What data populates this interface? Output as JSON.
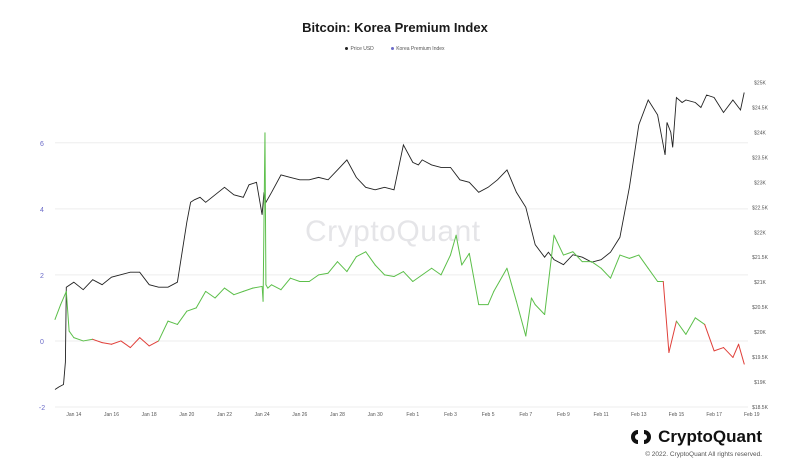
{
  "title": "Bitcoin: Korea Premium Index",
  "watermark": "CryptoQuant",
  "brand": "CryptoQuant",
  "copyright": "© 2022. CryptoQuant All rights reserved.",
  "colors": {
    "price": "#222222",
    "premium_positive": "#5cbf4a",
    "premium_negative": "#e0403a",
    "axis_left": "#6b6bc8",
    "axis_right": "#555555",
    "grid": "#eeeeee"
  },
  "chart_data": {
    "type": "line",
    "title": "Bitcoin: Korea Premium Index",
    "legend": [
      {
        "name": "Price USD",
        "color": "#222222"
      },
      {
        "name": "Korea Premium Index",
        "color": "#6b6bc8"
      }
    ],
    "legend_placement": "top-center",
    "grid": true,
    "x_ticks": [
      "Jan 14",
      "Jan 16",
      "Jan 18",
      "Jan 20",
      "Jan 22",
      "Jan 24",
      "Jan 26",
      "Jan 28",
      "Jan 30",
      "Feb 1",
      "Feb 3",
      "Feb 5",
      "Feb 7",
      "Feb 9",
      "Feb 11",
      "Feb 13",
      "Feb 15",
      "Feb 17",
      "Feb 19"
    ],
    "y_left": {
      "ticks": [
        "-2",
        "0",
        "2",
        "4",
        "6"
      ],
      "values": [
        -2,
        0,
        2,
        4,
        6
      ],
      "ylim": [
        -2,
        7.9
      ]
    },
    "y_right": {
      "ticks": [
        "$18.5K",
        "$19K",
        "$19.5K",
        "$20K",
        "$20.5K",
        "$21K",
        "$21.5K",
        "$22K",
        "$22.5K",
        "$23K",
        "$23.5K",
        "$24K",
        "$24.5K",
        "$25K"
      ],
      "values": [
        18500,
        19000,
        19500,
        20000,
        20500,
        21000,
        21500,
        22000,
        22500,
        23000,
        23500,
        24000,
        24500,
        25000
      ],
      "ylim": [
        18500,
        25050
      ]
    },
    "series": [
      {
        "name": "Price USD",
        "axis": "right",
        "x": [
          13.0,
          13.2,
          13.45,
          13.55,
          13.6,
          14.0,
          14.5,
          15.0,
          15.5,
          16.0,
          16.5,
          17.0,
          17.5,
          18.0,
          18.5,
          19.0,
          19.5,
          20.0,
          20.2,
          20.4,
          20.7,
          21.0,
          21.5,
          22.0,
          22.5,
          23.0,
          23.3,
          23.7,
          24.0,
          24.1,
          24.2,
          24.5,
          25.0,
          25.5,
          26.0,
          26.5,
          27.0,
          27.5,
          28.0,
          28.5,
          29.0,
          29.5,
          30.0,
          30.5,
          31.0,
          31.5,
          32.0,
          32.3,
          32.5,
          33.0,
          33.5,
          34.0,
          34.5,
          35.0,
          35.5,
          36.0,
          36.5,
          37.0,
          37.5,
          38.0,
          38.5,
          39.0,
          39.2,
          39.5,
          40.0,
          40.5,
          41.0,
          41.5,
          42.0,
          42.5,
          43.0,
          43.5,
          44.0,
          44.5,
          45.0,
          45.4,
          45.5,
          45.7,
          45.8,
          46.0,
          46.3,
          46.5,
          47.0,
          47.3,
          47.6,
          48.0,
          48.5,
          49.0,
          49.4,
          49.6
        ],
        "y": [
          18850,
          18900,
          18950,
          19400,
          20900,
          21000,
          20850,
          21050,
          20950,
          21100,
          21150,
          21200,
          21200,
          20950,
          20900,
          20900,
          21000,
          22200,
          22600,
          22650,
          22700,
          22600,
          22750,
          22900,
          22750,
          22700,
          22950,
          23000,
          22350,
          22800,
          22600,
          22800,
          23150,
          23100,
          23050,
          23050,
          23100,
          23050,
          23250,
          23450,
          23100,
          22900,
          22850,
          22900,
          22850,
          23750,
          23400,
          23350,
          23450,
          23350,
          23300,
          23300,
          23050,
          23000,
          22800,
          22900,
          23050,
          23250,
          22800,
          22500,
          21750,
          21500,
          21600,
          21450,
          21350,
          21550,
          21500,
          21400,
          21450,
          21600,
          21900,
          22900,
          24150,
          24650,
          24350,
          23550,
          24200,
          24000,
          23700,
          24700,
          24600,
          24650,
          24600,
          24500,
          24750,
          24700,
          24400,
          24650,
          24450,
          24800
        ]
      },
      {
        "name": "Korea Premium Index",
        "axis": "left",
        "x": [
          13.0,
          13.3,
          13.6,
          13.75,
          14.0,
          14.5,
          15.0,
          15.5,
          16.0,
          16.5,
          17.0,
          17.5,
          18.0,
          18.5,
          19.0,
          19.5,
          20.0,
          20.5,
          21.0,
          21.5,
          22.0,
          22.5,
          23.0,
          23.5,
          24.0,
          24.05,
          24.15,
          24.2,
          24.3,
          24.5,
          25.0,
          25.5,
          26.0,
          26.5,
          27.0,
          27.5,
          28.0,
          28.5,
          29.0,
          29.5,
          30.0,
          30.5,
          31.0,
          31.5,
          32.0,
          32.5,
          33.0,
          33.5,
          34.0,
          34.3,
          34.6,
          35.0,
          35.5,
          36.0,
          36.3,
          36.6,
          37.0,
          37.5,
          38.0,
          38.3,
          38.5,
          39.0,
          39.5,
          40.0,
          40.5,
          41.0,
          41.5,
          42.0,
          42.5,
          43.0,
          43.5,
          44.0,
          44.5,
          45.0,
          45.3,
          45.6,
          46.0,
          46.5,
          47.0,
          47.5,
          48.0,
          48.5,
          49.0,
          49.3,
          49.6
        ],
        "y": [
          0.65,
          1.1,
          1.5,
          0.3,
          0.1,
          0.0,
          0.05,
          -0.05,
          -0.1,
          0.0,
          -0.2,
          0.1,
          -0.15,
          0.0,
          0.6,
          0.5,
          0.9,
          1.0,
          1.5,
          1.3,
          1.6,
          1.4,
          1.5,
          1.6,
          1.65,
          1.2,
          6.3,
          1.7,
          1.6,
          1.7,
          1.55,
          1.9,
          1.8,
          1.8,
          2.0,
          2.05,
          2.4,
          2.1,
          2.55,
          2.7,
          2.3,
          2.0,
          1.95,
          2.1,
          1.8,
          2.0,
          2.2,
          2.0,
          2.6,
          3.2,
          2.3,
          2.65,
          1.1,
          1.1,
          1.5,
          1.8,
          2.2,
          1.2,
          0.15,
          1.3,
          1.1,
          0.8,
          3.2,
          2.6,
          2.7,
          2.4,
          2.4,
          2.2,
          1.9,
          2.6,
          2.5,
          2.6,
          2.2,
          1.8,
          1.8,
          -0.35,
          0.6,
          0.2,
          0.7,
          0.5,
          -0.3,
          -0.2,
          -0.5,
          -0.1,
          -0.7
        ]
      }
    ]
  }
}
